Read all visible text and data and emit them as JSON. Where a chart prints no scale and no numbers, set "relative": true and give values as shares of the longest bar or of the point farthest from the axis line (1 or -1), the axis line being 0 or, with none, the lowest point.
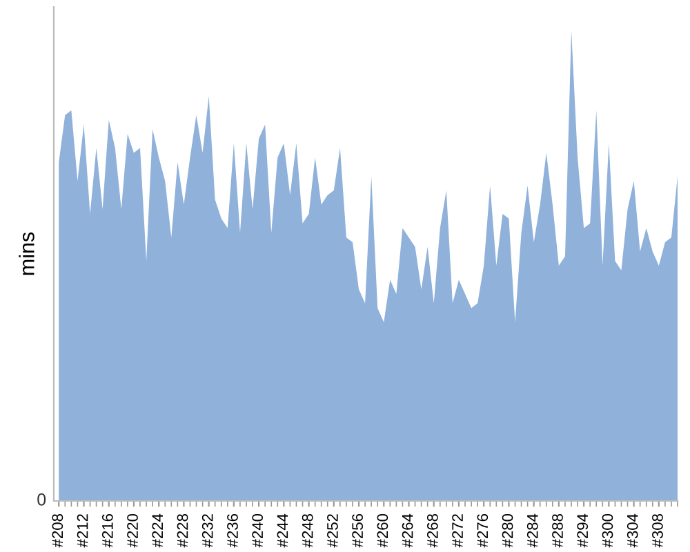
{
  "chart_data": {
    "type": "area",
    "ylabel": "mins",
    "relative": true,
    "color": "#8fb1da",
    "grid": false,
    "legend": false,
    "annotations": [
      "0"
    ],
    "categories": [
      "#208",
      null,
      null,
      null,
      "#212",
      null,
      null,
      null,
      "#216",
      null,
      null,
      null,
      "#220",
      null,
      null,
      null,
      "#224",
      null,
      null,
      null,
      "#228",
      null,
      null,
      null,
      "#232",
      null,
      null,
      null,
      "#236",
      null,
      null,
      null,
      "#240",
      null,
      null,
      null,
      "#244",
      null,
      null,
      null,
      "#248",
      null,
      null,
      null,
      "#252",
      null,
      null,
      null,
      "#256",
      null,
      null,
      null,
      "#260",
      null,
      null,
      null,
      "#264",
      null,
      null,
      null,
      "#268",
      null,
      null,
      null,
      "#272",
      null,
      null,
      null,
      "#276",
      null,
      null,
      null,
      "#280",
      null,
      null,
      null,
      "#284",
      null,
      null,
      null,
      "#288",
      null,
      null,
      null,
      "#294",
      null,
      null,
      null,
      "#300",
      null,
      null,
      null,
      "#304",
      null,
      null,
      null,
      "#308",
      null,
      null,
      null
    ],
    "values": [
      0.72,
      0.82,
      0.83,
      0.68,
      0.8,
      0.61,
      0.75,
      0.62,
      0.81,
      0.75,
      0.62,
      0.78,
      0.74,
      0.75,
      0.51,
      0.79,
      0.73,
      0.68,
      0.56,
      0.72,
      0.63,
      0.73,
      0.82,
      0.74,
      0.86,
      0.64,
      0.6,
      0.58,
      0.76,
      0.57,
      0.76,
      0.62,
      0.77,
      0.8,
      0.57,
      0.73,
      0.76,
      0.65,
      0.76,
      0.59,
      0.61,
      0.73,
      0.63,
      0.65,
      0.66,
      0.75,
      0.56,
      0.55,
      0.45,
      0.42,
      0.69,
      0.41,
      0.38,
      0.47,
      0.44,
      0.58,
      0.56,
      0.54,
      0.45,
      0.54,
      0.42,
      0.58,
      0.66,
      0.42,
      0.47,
      0.44,
      0.41,
      0.42,
      0.5,
      0.67,
      0.5,
      0.61,
      0.6,
      0.38,
      0.57,
      0.67,
      0.55,
      0.63,
      0.74,
      0.63,
      0.5,
      0.52,
      1.0,
      0.73,
      0.58,
      0.59,
      0.83,
      0.5,
      0.76,
      0.51,
      0.49,
      0.62,
      0.68,
      0.53,
      0.58,
      0.53,
      0.5,
      0.55,
      0.56,
      0.69
    ]
  }
}
